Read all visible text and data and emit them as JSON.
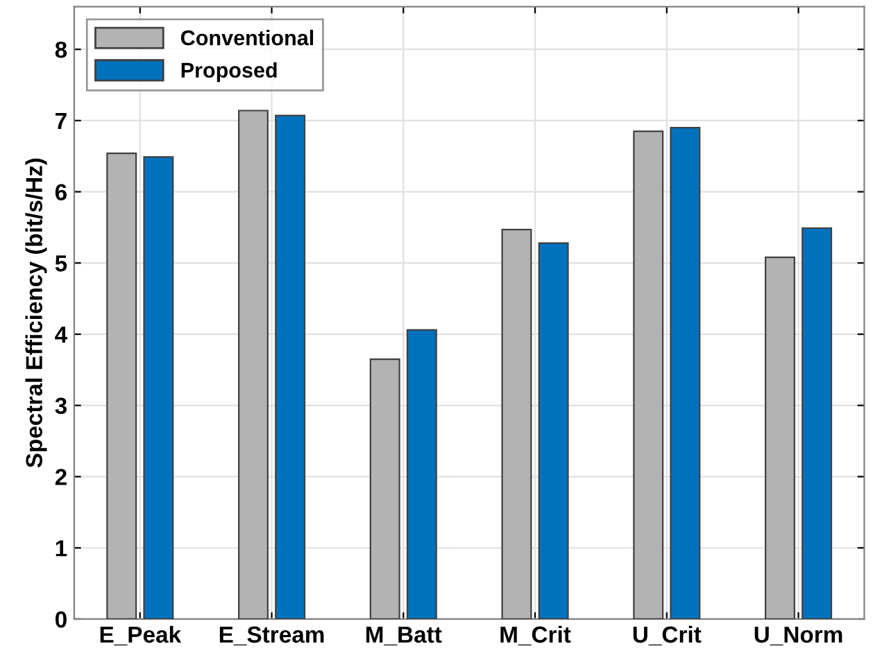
{
  "chart_data": {
    "type": "bar",
    "ylabel": "Spectral Efficiency (bit/s/Hz)",
    "categories": [
      "E_Peak",
      "E_Stream",
      "M_Batt",
      "M_Crit",
      "U_Crit",
      "U_Norm"
    ],
    "series": [
      {
        "name": "Conventional",
        "color": "#b3b3b3",
        "values": [
          6.54,
          7.14,
          3.65,
          5.47,
          6.85,
          5.08
        ]
      },
      {
        "name": "Proposed",
        "color": "#0072bd",
        "values": [
          6.49,
          7.07,
          4.06,
          5.28,
          6.9,
          5.49
        ]
      }
    ],
    "ylim": [
      0,
      8.6
    ],
    "yticks": [
      0,
      1,
      2,
      3,
      4,
      5,
      6,
      7,
      8
    ],
    "grid": true,
    "legend": "top left"
  }
}
